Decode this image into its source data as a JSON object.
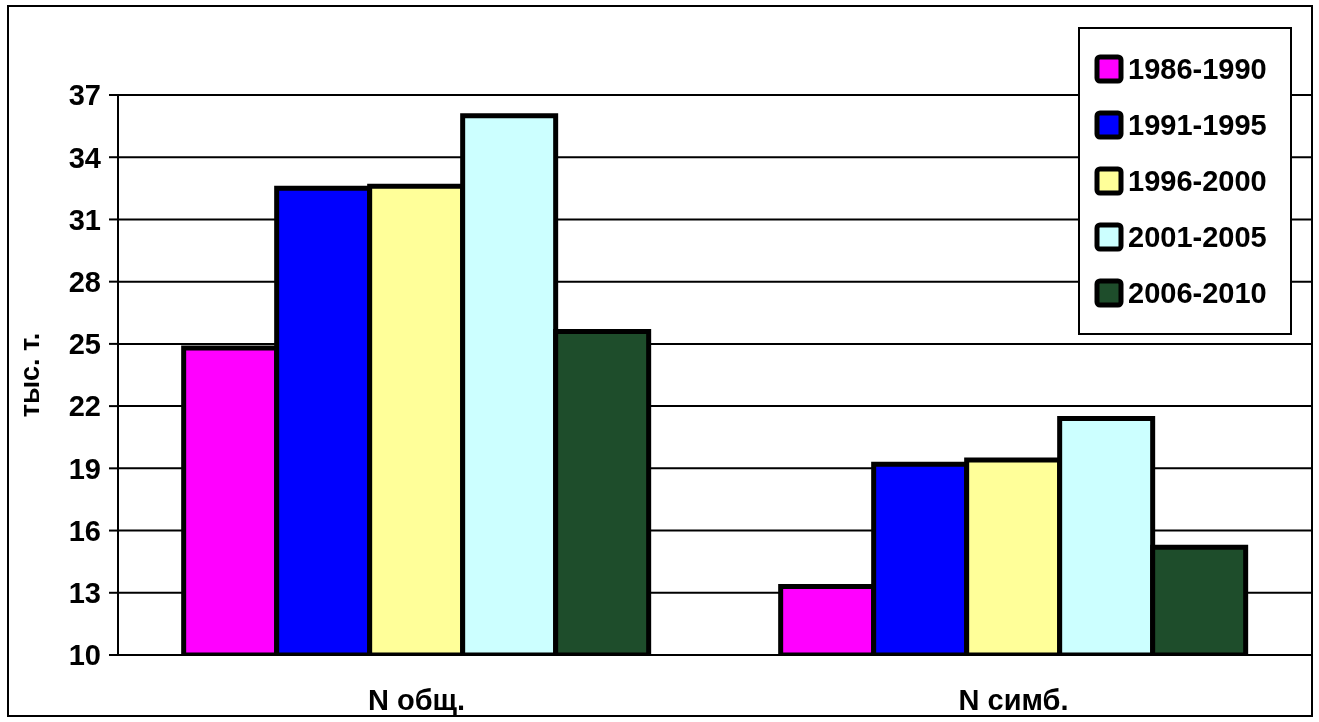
{
  "chart_data": {
    "type": "bar",
    "ylabel": "тыс. т.",
    "categories": [
      "N общ.",
      "N симб."
    ],
    "series": [
      {
        "name": "1986-1990",
        "color": "#ff00ff",
        "values": [
          24.8,
          13.3
        ]
      },
      {
        "name": "1991-1995",
        "color": "#0000ff",
        "values": [
          32.5,
          19.2
        ]
      },
      {
        "name": "1996-2000",
        "color": "#ffff99",
        "values": [
          32.6,
          19.4
        ]
      },
      {
        "name": "2001-2005",
        "color": "#ccffff",
        "values": [
          36.0,
          21.4
        ]
      },
      {
        "name": "2006-2010",
        "color": "#1e4d2b",
        "values": [
          25.6,
          15.2
        ]
      }
    ],
    "ylim": [
      10,
      37
    ],
    "yticks": [
      10,
      13,
      16,
      19,
      22,
      25,
      28,
      31,
      34,
      37
    ],
    "grid": "y",
    "legend": "top right"
  }
}
